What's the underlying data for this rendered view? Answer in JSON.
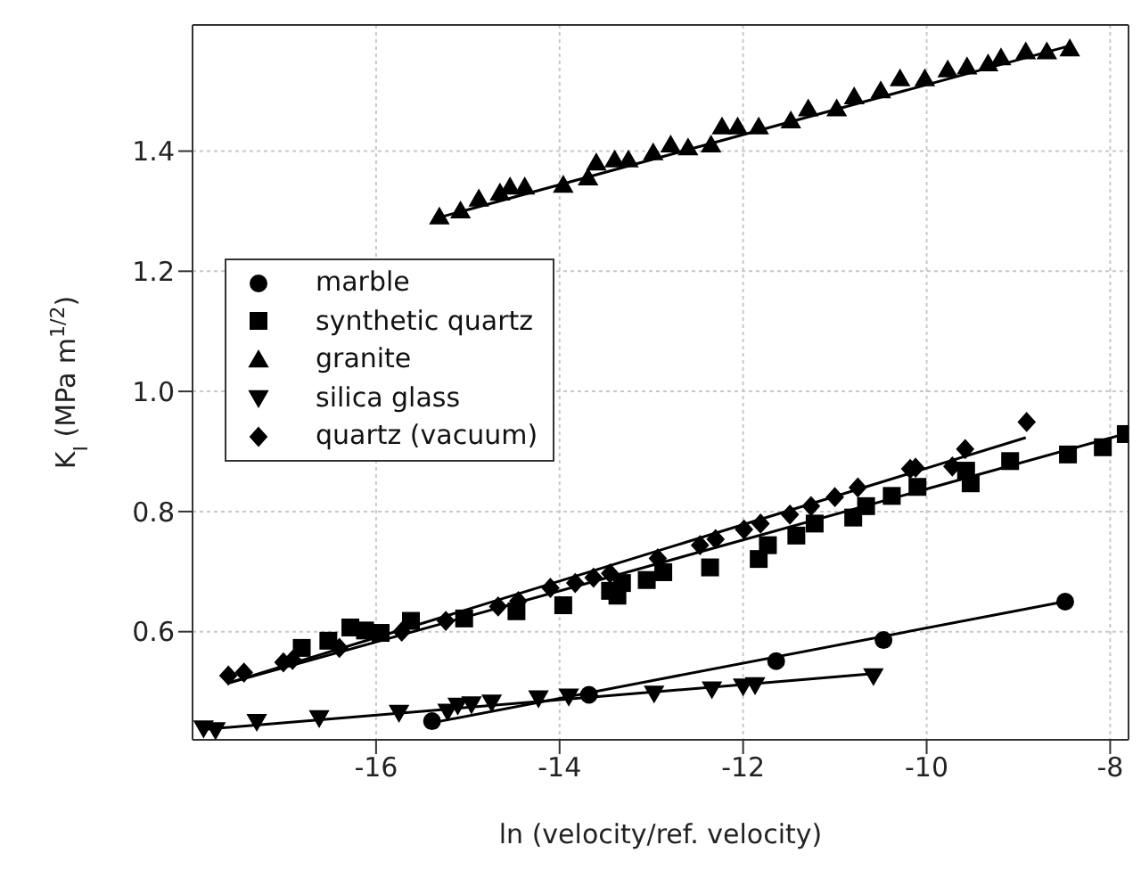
{
  "chart_data": {
    "type": "scatter",
    "xlabel": "ln (velocity/ref. velocity)",
    "ylabel": "K$_{I}$ (MPa m$^{1/2}$)",
    "xlim": [
      -18,
      -7.8
    ],
    "ylim": [
      0.42,
      1.61
    ],
    "xticks": [
      -16,
      -14,
      -12,
      -10,
      -8
    ],
    "yticks": [
      0.6,
      0.8,
      {
        "value": 1,
        "label": "1.0"
      },
      1.2,
      1.4
    ],
    "grid": true,
    "legend": "left",
    "series": [
      {
        "name": "marble",
        "color": "#000000",
        "marker": "circle",
        "x": [
          -15.39,
          -13.68,
          -11.64,
          -10.47,
          -8.49
        ],
        "values": [
          0.451,
          0.495,
          0.551,
          0.586,
          0.65
        ]
      },
      {
        "name": "synthetic quartz",
        "color": "#000000",
        "marker": "square",
        "x": [
          -16.81,
          -16.52,
          -16.28,
          -16.12,
          -15.95,
          -15.62,
          -15.04,
          -14.47,
          -13.96,
          -13.45,
          -13.37,
          -13.32,
          -13.05,
          -12.87,
          -12.36,
          -11.83,
          -11.73,
          -11.42,
          -11.22,
          -10.8,
          -10.66,
          -10.38,
          -10.1,
          -9.57,
          -9.52,
          -9.09,
          -8.46,
          -8.08,
          -7.83
        ],
        "values": [
          0.573,
          0.585,
          0.607,
          0.602,
          0.598,
          0.618,
          0.622,
          0.634,
          0.644,
          0.668,
          0.66,
          0.681,
          0.686,
          0.699,
          0.707,
          0.721,
          0.744,
          0.76,
          0.78,
          0.79,
          0.809,
          0.826,
          0.841,
          0.868,
          0.847,
          0.884,
          0.895,
          0.907,
          0.929
        ]
      },
      {
        "name": "granite",
        "color": "#000000",
        "marker": "triangle",
        "x": [
          -15.31,
          -15.08,
          -14.88,
          -14.65,
          -14.54,
          -14.38,
          -13.96,
          -13.69,
          -13.6,
          -13.4,
          -13.25,
          -12.98,
          -12.79,
          -12.6,
          -12.35,
          -12.23,
          -12.06,
          -11.83,
          -11.48,
          -11.29,
          -10.98,
          -10.79,
          -10.5,
          -10.29,
          -10.02,
          -9.77,
          -9.56,
          -9.33,
          -9.19,
          -8.92,
          -8.69,
          -8.44
        ],
        "values": [
          1.29,
          1.3,
          1.32,
          1.33,
          1.34,
          1.34,
          1.343,
          1.355,
          1.38,
          1.385,
          1.385,
          1.397,
          1.41,
          1.405,
          1.41,
          1.44,
          1.44,
          1.44,
          1.45,
          1.47,
          1.47,
          1.49,
          1.5,
          1.52,
          1.52,
          1.535,
          1.54,
          1.545,
          1.555,
          1.565,
          1.565,
          1.57
        ]
      },
      {
        "name": "silica glass",
        "color": "#000000",
        "marker": "triangle-down",
        "x": [
          -17.88,
          -17.75,
          -17.3,
          -16.62,
          -15.75,
          -15.22,
          -15.11,
          -14.96,
          -14.74,
          -14.23,
          -13.9,
          -12.97,
          -12.34,
          -12.0,
          -11.87,
          -10.58
        ],
        "values": [
          0.44,
          0.437,
          0.451,
          0.457,
          0.466,
          0.468,
          0.478,
          0.48,
          0.483,
          0.49,
          0.493,
          0.498,
          0.505,
          0.51,
          0.512,
          0.527
        ]
      },
      {
        "name": "quartz (vacuum)",
        "color": "#000000",
        "marker": "diamond",
        "x": [
          -17.61,
          -17.44,
          -17.01,
          -16.91,
          -16.4,
          -15.72,
          -15.24,
          -14.67,
          -14.45,
          -14.1,
          -13.83,
          -13.63,
          -13.45,
          -12.93,
          -12.47,
          -12.3,
          -11.99,
          -11.81,
          -11.49,
          -11.26,
          -11.0,
          -10.75,
          -10.18,
          -10.12,
          -9.72,
          -9.58,
          -8.91
        ],
        "values": [
          0.527,
          0.532,
          0.549,
          0.553,
          0.573,
          0.6,
          0.618,
          0.642,
          0.651,
          0.673,
          0.681,
          0.69,
          0.697,
          0.722,
          0.744,
          0.754,
          0.77,
          0.78,
          0.795,
          0.809,
          0.824,
          0.84,
          0.871,
          0.873,
          0.875,
          0.904,
          0.949
        ]
      },
      {
        "type": "line",
        "color": "#000000",
        "marker": "none",
        "x": [
          -15.3,
          -8.45
        ],
        "values": [
          1.29,
          1.575
        ]
      },
      {
        "type": "line",
        "color": "#000000",
        "marker": "none",
        "x": [
          -15.4,
          -8.5
        ],
        "values": [
          0.448,
          0.65
        ]
      },
      {
        "type": "line",
        "color": "#000000",
        "marker": "none",
        "x": [
          -17.9,
          -10.58
        ],
        "values": [
          0.437,
          0.53
        ]
      },
      {
        "type": "line",
        "color": "#000000",
        "marker": "none",
        "x": [
          -17.6,
          -7.8
        ],
        "values": [
          0.515,
          0.931
        ]
      },
      {
        "type": "line",
        "color": "#000000",
        "marker": "none",
        "x": [
          -17.6,
          -8.92
        ],
        "values": [
          0.515,
          0.923
        ]
      }
    ]
  }
}
